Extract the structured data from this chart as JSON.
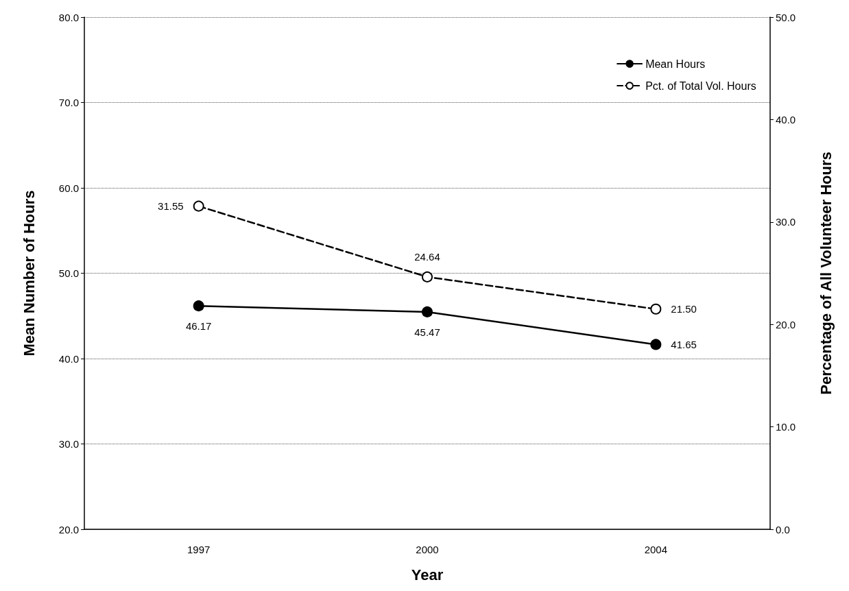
{
  "chart_data": {
    "type": "line",
    "xlabel": "Year",
    "ylabel": "Mean Number of Hours",
    "y2label": "Percentage of All Volunteer Hours",
    "categories": [
      "1997",
      "2000",
      "2004"
    ],
    "series": [
      {
        "name": "Mean Hours",
        "color": "#000000",
        "values": [
          46.17,
          45.47,
          41.65
        ],
        "value_labels": [
          "46.17",
          "45.47",
          "41.65"
        ],
        "marker": "circle",
        "line_style": "solid"
      },
      {
        "name": "Pct. of Total Vol. Hours",
        "color": "#000000",
        "values": [
          31.55,
          24.64,
          21.5
        ],
        "value_labels": [
          "31.55",
          "24.64",
          "21.50"
        ],
        "marker": "circle",
        "line_style": "dashed",
        "axis": "y2"
      }
    ],
    "ylim": [
      20,
      80
    ],
    "yticks": [
      {
        "value": 20,
        "label": "20.0"
      },
      {
        "value": 30,
        "label": "30.0"
      },
      {
        "value": 40,
        "label": "40.0"
      },
      {
        "value": 50,
        "label": "50.0"
      },
      {
        "value": 60,
        "label": "60.0"
      },
      {
        "value": 70,
        "label": "70.0"
      },
      {
        "value": 80,
        "label": "80.0"
      }
    ],
    "y2lim": [
      0,
      50
    ],
    "y2ticks": [
      {
        "value": 0,
        "label": "0.0"
      },
      {
        "value": 10,
        "label": "10.0"
      },
      {
        "value": 20,
        "label": "20.0"
      },
      {
        "value": 30,
        "label": "30.0"
      },
      {
        "value": 40,
        "label": "40.0"
      },
      {
        "value": 50,
        "label": "50.0"
      }
    ],
    "grid": "y",
    "legend": "top right"
  }
}
